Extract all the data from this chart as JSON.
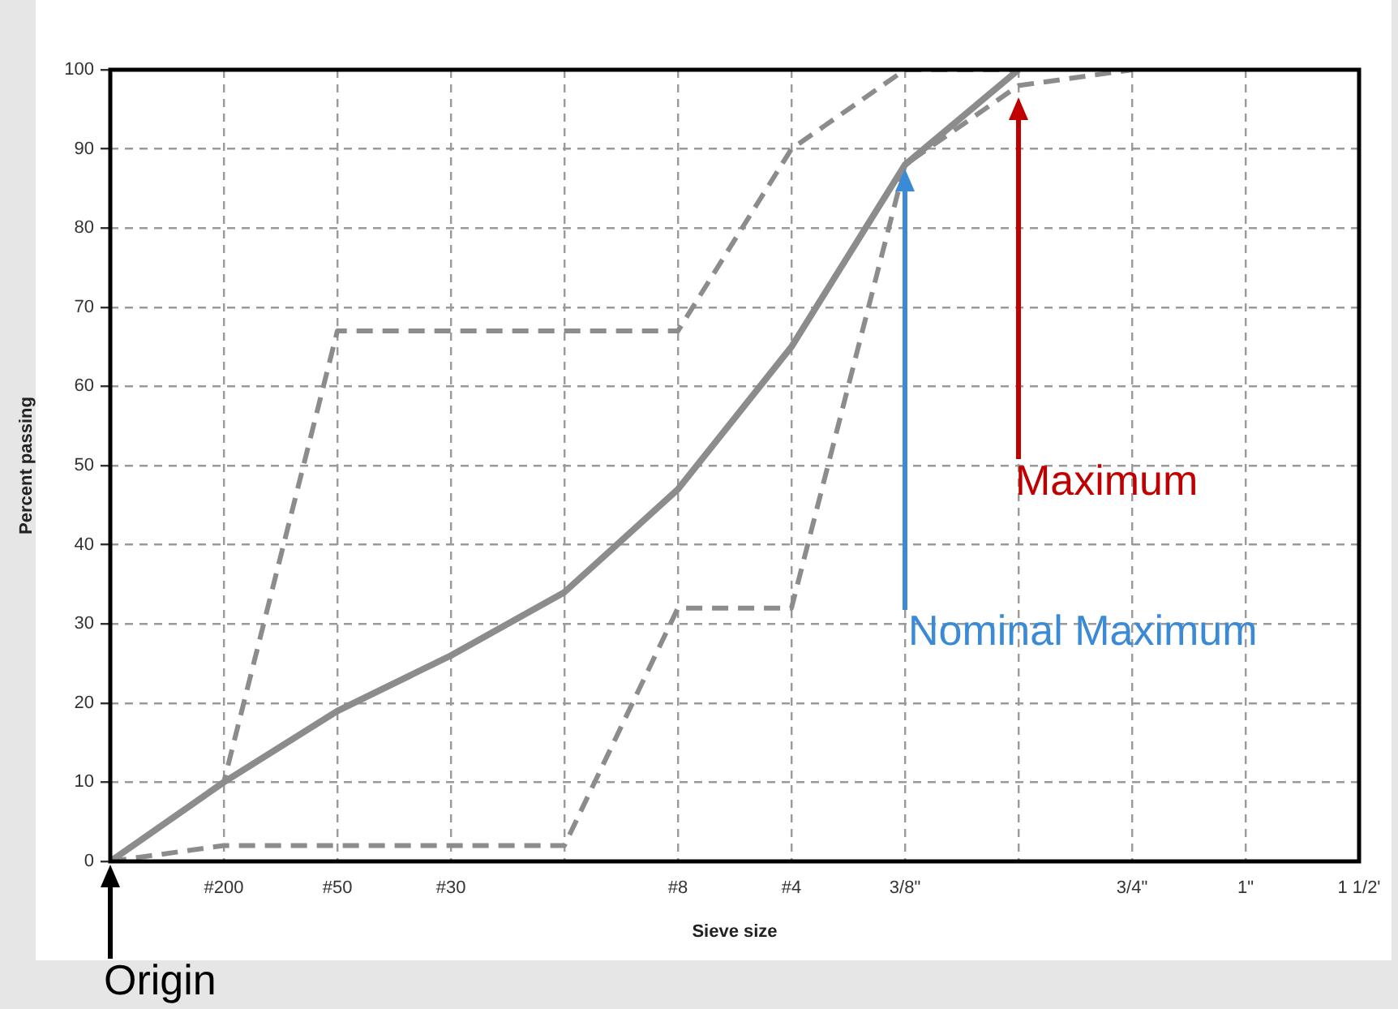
{
  "chart_data": {
    "type": "line",
    "xlabel": "Sieve size",
    "ylabel": "Percent passing",
    "categories": [
      null,
      "#200",
      "#50",
      "#30",
      null,
      "#8",
      "#4",
      "3/8\"",
      null,
      "3/4\"",
      "1\"",
      "1 1/2'"
    ],
    "ylim": [
      0,
      100
    ],
    "yticks": [
      0,
      10,
      20,
      30,
      40,
      50,
      60,
      70,
      80,
      90,
      100
    ],
    "grid": true,
    "legend": false,
    "marker": "none",
    "series": [
      {
        "color": "#8c8c8c",
        "line_style": "solid",
        "values": [
          0,
          10,
          19,
          26,
          34,
          47,
          65,
          88,
          100,
          null,
          null,
          null
        ]
      },
      {
        "color": "#8c8c8c",
        "line_style": "dashed",
        "values": [
          0,
          10,
          67,
          67,
          67,
          67,
          90,
          100,
          100,
          null,
          null,
          null
        ]
      },
      {
        "color": "#8c8c8c",
        "line_style": "dashed",
        "values": [
          0,
          2,
          2,
          2,
          2,
          32,
          32,
          88,
          98,
          100,
          null,
          null
        ]
      }
    ],
    "annotations": [
      "Nominal Maximum",
      "Maximum",
      "Origin"
    ]
  }
}
